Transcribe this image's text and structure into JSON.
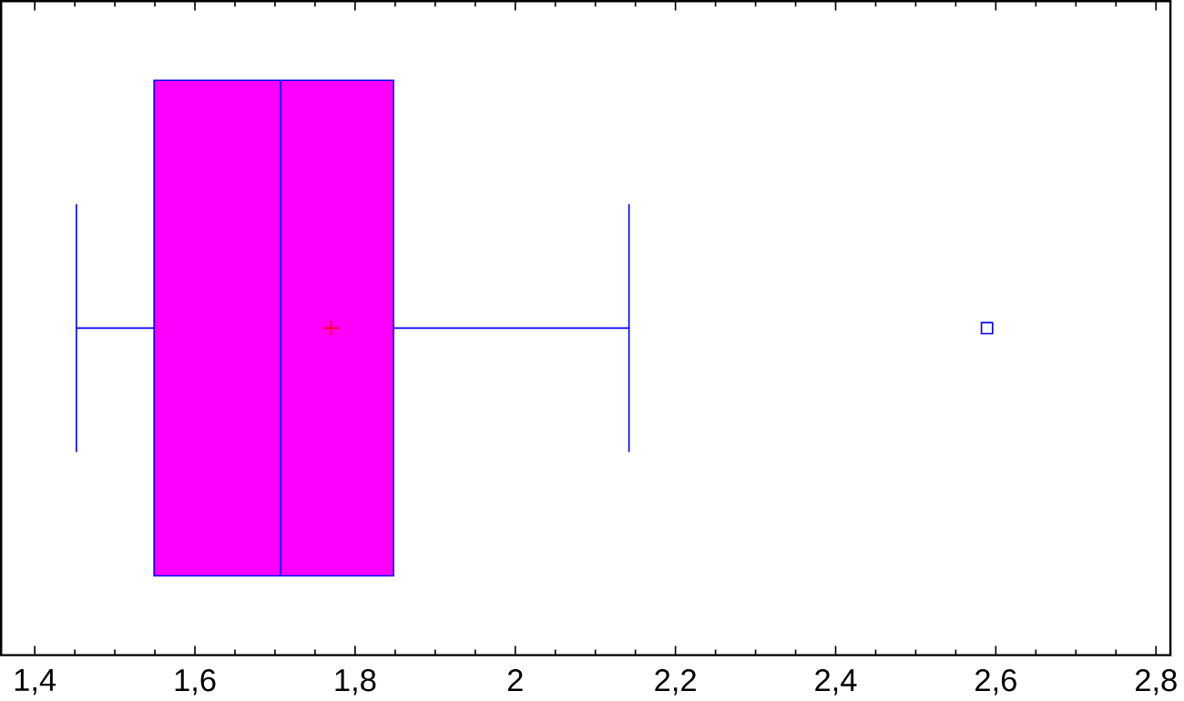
{
  "chart_data": {
    "type": "box",
    "orientation": "horizontal",
    "categories": [
      null
    ],
    "color": "#ff00ff",
    "boxes": [
      {
        "low": 1.452,
        "q1": 1.549,
        "median": 1.707,
        "q3": 1.848,
        "high": 2.142,
        "mean": 1.77,
        "outliers": [
          2.589
        ]
      }
    ],
    "xlim": [
      1.358,
      2.818
    ],
    "xticks": [
      {
        "value": 1.4,
        "label": "1,4"
      },
      {
        "value": 1.6,
        "label": "1,6"
      },
      {
        "value": 1.8,
        "label": "1,8"
      },
      2,
      {
        "value": 2.2,
        "label": "2,2"
      },
      {
        "value": 2.4,
        "label": "2,4"
      },
      {
        "value": 2.6,
        "label": "2,6"
      },
      {
        "value": 2.8,
        "label": "2,8"
      }
    ],
    "tick_labels": "x"
  }
}
